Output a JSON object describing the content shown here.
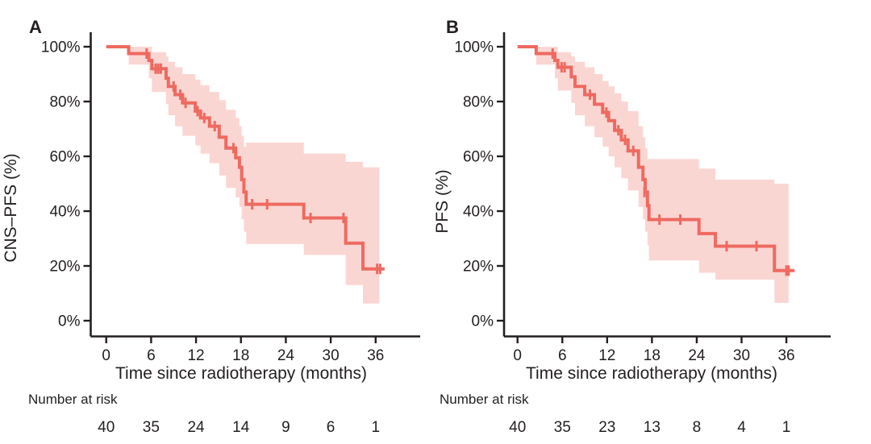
{
  "colors": {
    "curve": "#ee6a60",
    "band_fill": "#ee6a60",
    "band_opacity": 0.28,
    "axis": "#231f20",
    "text": "#231f20",
    "background": "#ffffff"
  },
  "chart_data": [
    {
      "type": "line",
      "variant": "kaplan_meier_step_with_ci",
      "panel_label": "A",
      "ylabel": "CNS–PFS (%)",
      "xlabel": "Time since radiotherapy (months)",
      "xlim": [
        0,
        38
      ],
      "ylim": [
        0,
        100
      ],
      "xticks": [
        0,
        6,
        12,
        18,
        24,
        30,
        36
      ],
      "yticks": [
        [
          0,
          "0%"
        ],
        [
          20,
          "20%"
        ],
        [
          40,
          "40%"
        ],
        [
          60,
          "60%"
        ],
        [
          80,
          "80%"
        ],
        [
          100,
          "100%"
        ]
      ],
      "grid": false,
      "legend": "none",
      "steps_schema": [
        "time_months",
        "survival_pct",
        "ci_lower_pct",
        "ci_upper_pct"
      ],
      "steps": [
        [
          0,
          100,
          100,
          100
        ],
        [
          3.0,
          97.5,
          93.5,
          100
        ],
        [
          5.7,
          95.0,
          88.5,
          100
        ],
        [
          6.1,
          92.0,
          83.5,
          98.0
        ],
        [
          8.0,
          88.5,
          79.0,
          96.5
        ],
        [
          8.3,
          85.5,
          75.0,
          94.5
        ],
        [
          9.2,
          82.5,
          71.0,
          92.5
        ],
        [
          10.2,
          79.5,
          67.5,
          90.0
        ],
        [
          11.9,
          76.5,
          64.0,
          88.0
        ],
        [
          12.6,
          74.0,
          61.0,
          86.0
        ],
        [
          13.8,
          71.0,
          57.5,
          83.5
        ],
        [
          15.1,
          67.0,
          53.0,
          80.5
        ],
        [
          16.0,
          63.0,
          48.5,
          77.0
        ],
        [
          17.3,
          59.5,
          45.0,
          74.0
        ],
        [
          17.8,
          56.0,
          41.5,
          71.0
        ],
        [
          18.1,
          51.5,
          37.0,
          67.5
        ],
        [
          18.4,
          47.0,
          32.5,
          63.5
        ],
        [
          18.7,
          42.5,
          28.0,
          65.0
        ],
        [
          26.4,
          37.5,
          24.0,
          61.0
        ],
        [
          32.0,
          28.3,
          13.0,
          58.0
        ],
        [
          34.3,
          18.9,
          6.3,
          56.0
        ]
      ],
      "end_time": 37.2,
      "band_end_time": 36.5,
      "censor_marks": [
        [
          5.4,
          97.5
        ],
        [
          6.6,
          92.0
        ],
        [
          6.95,
          92.0
        ],
        [
          7.3,
          92.0
        ],
        [
          9.0,
          85.5
        ],
        [
          9.9,
          82.5
        ],
        [
          10.6,
          79.5
        ],
        [
          12.2,
          76.5
        ],
        [
          13.1,
          74.0
        ],
        [
          14.5,
          71.0
        ],
        [
          17.0,
          63.0
        ],
        [
          19.5,
          42.5
        ],
        [
          21.5,
          42.5
        ],
        [
          27.3,
          37.5
        ],
        [
          31.7,
          37.5
        ],
        [
          36.2,
          18.9
        ],
        [
          36.6,
          18.9
        ]
      ],
      "number_at_risk": {
        "label": "Number at risk",
        "times": [
          0,
          6,
          12,
          18,
          24,
          30,
          36
        ],
        "counts": [
          40,
          35,
          24,
          14,
          9,
          6,
          1
        ]
      }
    },
    {
      "type": "line",
      "variant": "kaplan_meier_step_with_ci",
      "panel_label": "B",
      "ylabel": "PFS (%)",
      "xlabel": "Time since radiotherapy (months)",
      "xlim": [
        0,
        38
      ],
      "ylim": [
        0,
        100
      ],
      "xticks": [
        0,
        6,
        12,
        18,
        24,
        30,
        36
      ],
      "yticks": [
        [
          0,
          "0%"
        ],
        [
          20,
          "20%"
        ],
        [
          40,
          "40%"
        ],
        [
          60,
          "60%"
        ],
        [
          80,
          "80%"
        ],
        [
          100,
          "100%"
        ]
      ],
      "grid": false,
      "legend": "none",
      "steps_schema": [
        "time_months",
        "survival_pct",
        "ci_lower_pct",
        "ci_upper_pct"
      ],
      "steps": [
        [
          0,
          100,
          100,
          100
        ],
        [
          2.5,
          97.5,
          93.5,
          100
        ],
        [
          5.0,
          95.0,
          88.5,
          100
        ],
        [
          5.4,
          92.5,
          84.0,
          98.0
        ],
        [
          7.2,
          89.0,
          79.5,
          96.5
        ],
        [
          7.7,
          85.5,
          75.0,
          94.5
        ],
        [
          9.0,
          82.5,
          71.0,
          92.5
        ],
        [
          10.3,
          79.0,
          67.0,
          90.0
        ],
        [
          11.4,
          76.0,
          63.5,
          87.5
        ],
        [
          12.2,
          73.0,
          60.0,
          85.5
        ],
        [
          13.0,
          69.5,
          56.0,
          83.0
        ],
        [
          13.9,
          66.0,
          52.0,
          80.0
        ],
        [
          14.8,
          62.0,
          47.5,
          76.5
        ],
        [
          16.2,
          56.0,
          41.5,
          71.0
        ],
        [
          16.8,
          51.5,
          37.0,
          67.0
        ],
        [
          17.1,
          47.0,
          32.5,
          63.0
        ],
        [
          17.4,
          42.0,
          27.5,
          59.0
        ],
        [
          17.6,
          36.9,
          22.0,
          59.0
        ],
        [
          24.3,
          31.8,
          17.5,
          55.5
        ],
        [
          26.5,
          27.2,
          15.0,
          51.5
        ],
        [
          34.4,
          18.3,
          6.5,
          50.0
        ]
      ],
      "end_time": 37.1,
      "band_end_time": 36.3,
      "censor_marks": [
        [
          4.7,
          97.5
        ],
        [
          5.9,
          92.5
        ],
        [
          6.3,
          92.5
        ],
        [
          9.7,
          82.5
        ],
        [
          11.9,
          76.0
        ],
        [
          13.5,
          69.5
        ],
        [
          14.4,
          66.0
        ],
        [
          15.5,
          62.0
        ],
        [
          17.0,
          47.0
        ],
        [
          19.0,
          36.9
        ],
        [
          21.8,
          36.9
        ],
        [
          28.0,
          27.2
        ],
        [
          32.0,
          27.2
        ],
        [
          36.0,
          18.3
        ],
        [
          36.3,
          18.3
        ]
      ],
      "number_at_risk": {
        "label": "Number at risk",
        "times": [
          0,
          6,
          12,
          18,
          24,
          30,
          36
        ],
        "counts": [
          40,
          35,
          23,
          13,
          8,
          4,
          1
        ]
      }
    }
  ]
}
